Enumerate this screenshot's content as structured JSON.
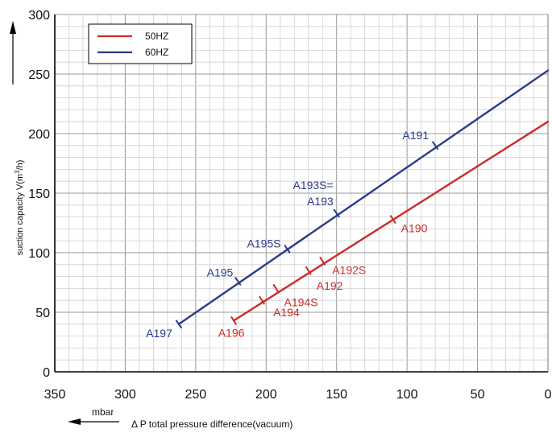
{
  "chart_data": {
    "type": "line",
    "xlabel": "Δ P total pressure difference(vacuum)",
    "xunit": "mbar",
    "ylabel_main": "suction capacity V(m",
    "ylabel_sup": "3",
    "ylabel_end": "/h)",
    "x_reversed": true,
    "xlim": [
      350,
      0
    ],
    "ylim": [
      0,
      300
    ],
    "x_ticks": [
      350,
      300,
      250,
      200,
      150,
      100,
      50,
      0
    ],
    "y_ticks": [
      0,
      50,
      100,
      150,
      200,
      250,
      300
    ],
    "grid": true,
    "legend_position": "top-left",
    "series": [
      {
        "name": "50HZ",
        "color": "#cc2a2a",
        "points": [
          [
            223,
            43
          ],
          [
            0,
            210
          ]
        ],
        "markers": [
          {
            "label": "A196",
            "x": 223,
            "y": 43
          },
          {
            "label": "A194",
            "x": 203,
            "y": 60
          },
          {
            "label": "A194S",
            "x": 193,
            "y": 70
          },
          {
            "label": "A192",
            "x": 170,
            "y": 85
          },
          {
            "label": "A192S",
            "x": 160,
            "y": 93
          },
          {
            "label": "A190",
            "x": 110,
            "y": 128
          }
        ]
      },
      {
        "name": "60HZ",
        "color": "#2b3a8c",
        "points": [
          [
            262,
            40
          ],
          [
            0,
            253
          ]
        ],
        "markers": [
          {
            "label": "A197",
            "x": 262,
            "y": 40
          },
          {
            "label": "A195",
            "x": 220,
            "y": 76
          },
          {
            "label": "A195S",
            "x": 185,
            "y": 103
          },
          {
            "label": "A193S=\nA193",
            "x": 150,
            "y": 133
          },
          {
            "label": "A191",
            "x": 80,
            "y": 190
          }
        ]
      }
    ]
  }
}
